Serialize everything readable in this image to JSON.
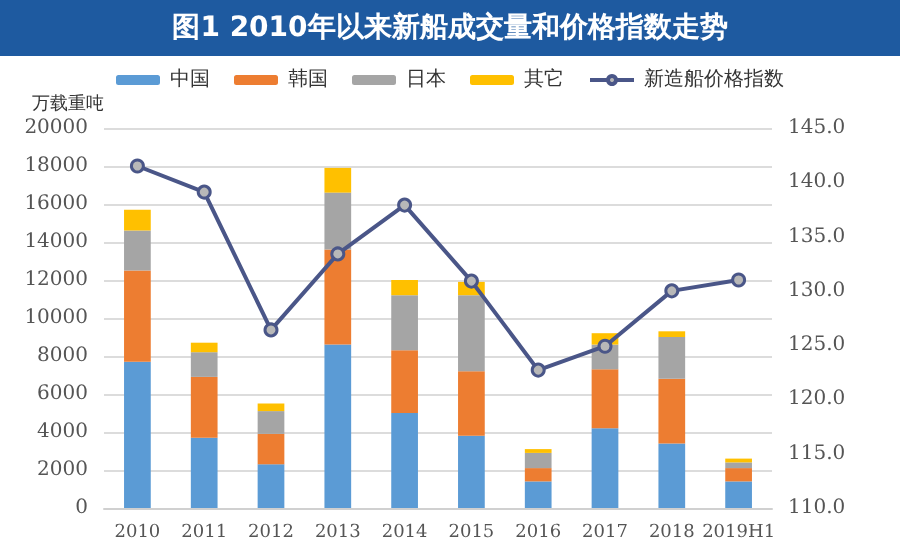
{
  "chart_data": {
    "type": "bar",
    "title": "图1 2010年以来新船成交量和价格指数走势",
    "ylabel": "万载重吨",
    "stacked": true,
    "legend": "top",
    "grid": "y",
    "marker": "circle",
    "categories": [
      "2010",
      "2011",
      "2012",
      "2013",
      "2014",
      "2015",
      "2016",
      "2017",
      "2018",
      "2019H1"
    ],
    "series": [
      {
        "name": "中国",
        "color": "#5b9bd5",
        "values": [
          7700,
          3700,
          2300,
          8600,
          5000,
          3800,
          1400,
          4200,
          3400,
          1400
        ]
      },
      {
        "name": "韩国",
        "color": "#ed7d31",
        "values": [
          4800,
          3200,
          1600,
          5000,
          3300,
          3400,
          700,
          3100,
          3400,
          700
        ]
      },
      {
        "name": "日本",
        "color": "#a5a5a5",
        "values": [
          2100,
          1300,
          1200,
          3000,
          2900,
          4000,
          800,
          1300,
          2200,
          300
        ]
      },
      {
        "name": "其它",
        "color": "#ffc000",
        "values": [
          1100,
          500,
          400,
          1300,
          800,
          700,
          200,
          600,
          300,
          200
        ]
      },
      {
        "name": "新造船价格指数",
        "type": "line",
        "axis": "y2",
        "color": "#4a5688",
        "values": [
          141.5,
          139.1,
          126.4,
          133.4,
          137.9,
          130.9,
          122.7,
          124.9,
          130.0,
          131.0
        ]
      }
    ],
    "ylim": [
      0,
      20000
    ],
    "yticks": [
      0,
      2000,
      4000,
      6000,
      8000,
      10000,
      12000,
      14000,
      16000,
      18000,
      20000
    ],
    "y2lim": [
      110,
      145
    ],
    "y2ticks": [
      {
        "value": 110,
        "label": "110.0"
      },
      {
        "value": 115,
        "label": "115.0"
      },
      {
        "value": 120,
        "label": "120.0"
      },
      {
        "value": 125,
        "label": "125.0"
      },
      {
        "value": 130,
        "label": "130.0"
      },
      {
        "value": 135,
        "label": "135.0"
      },
      {
        "value": 140,
        "label": "140.0"
      },
      {
        "value": 145,
        "label": "145.0"
      }
    ]
  }
}
